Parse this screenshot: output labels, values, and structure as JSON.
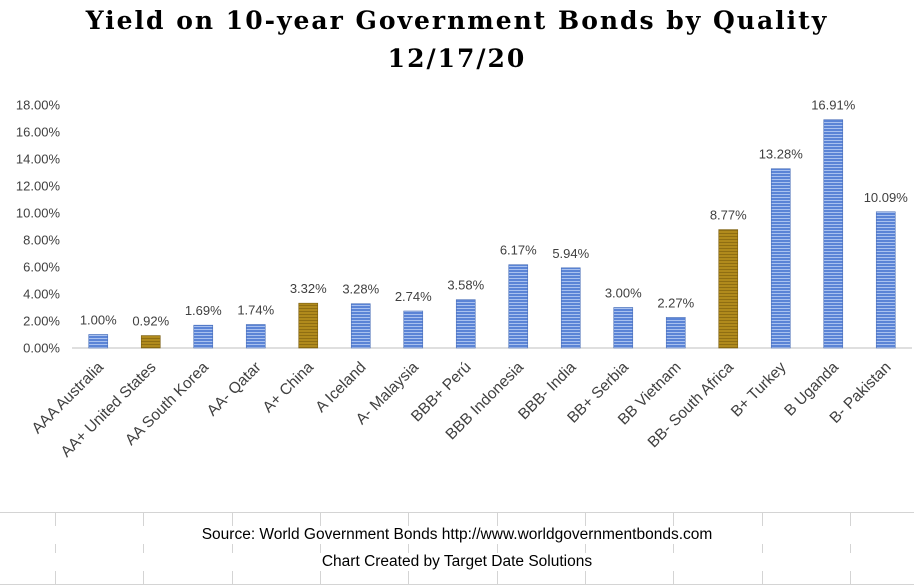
{
  "chart_data": {
    "type": "bar",
    "title": "Yield on 10-year Government Bonds by Quality",
    "subtitle": "12/17/20",
    "categories": [
      "AAA Australia",
      "AA+ United States",
      "AA South Korea",
      "AA- Qatar",
      "A+ China",
      "A Iceland",
      "A- Malaysia",
      "BBB+ Perú",
      "BBB Indonesia",
      "BBB- India",
      "BB+ Serbia",
      "BB Vietnam",
      "BB- South Africa",
      "B+ Turkey",
      "B Uganda",
      "B- Pakistan"
    ],
    "values": [
      1.0,
      0.92,
      1.69,
      1.74,
      3.32,
      3.28,
      2.74,
      3.58,
      6.17,
      5.94,
      3.0,
      2.27,
      8.77,
      13.28,
      16.91,
      10.09
    ],
    "data_labels": [
      "1.00%",
      "0.92%",
      "1.69%",
      "1.74%",
      "3.32%",
      "3.28%",
      "2.74%",
      "3.58%",
      "6.17%",
      "5.94%",
      "3.00%",
      "2.27%",
      "8.77%",
      "13.28%",
      "16.91%",
      "10.09%"
    ],
    "highlighted": [
      false,
      true,
      false,
      false,
      true,
      false,
      false,
      false,
      false,
      false,
      false,
      false,
      true,
      false,
      false,
      false
    ],
    "ylim": [
      0,
      18
    ],
    "y_ticks": [
      0,
      2,
      4,
      6,
      8,
      10,
      12,
      14,
      16,
      18
    ],
    "y_tick_labels": [
      "0.00%",
      "2.00%",
      "4.00%",
      "6.00%",
      "8.00%",
      "10.00%",
      "12.00%",
      "14.00%",
      "16.00%",
      "18.00%"
    ],
    "xlabel": "",
    "ylabel": "",
    "grid": false,
    "colors": {
      "bar": "#5b84d6",
      "bar_stripe": "#a9c1ef",
      "highlight": "#b08a1c",
      "highlight_stripe": "#8f6e12"
    }
  },
  "footer": {
    "source": "Source: World Government Bonds   http://www.worldgovernmentbonds.com",
    "credit": "Chart Created by Target Date Solutions"
  }
}
